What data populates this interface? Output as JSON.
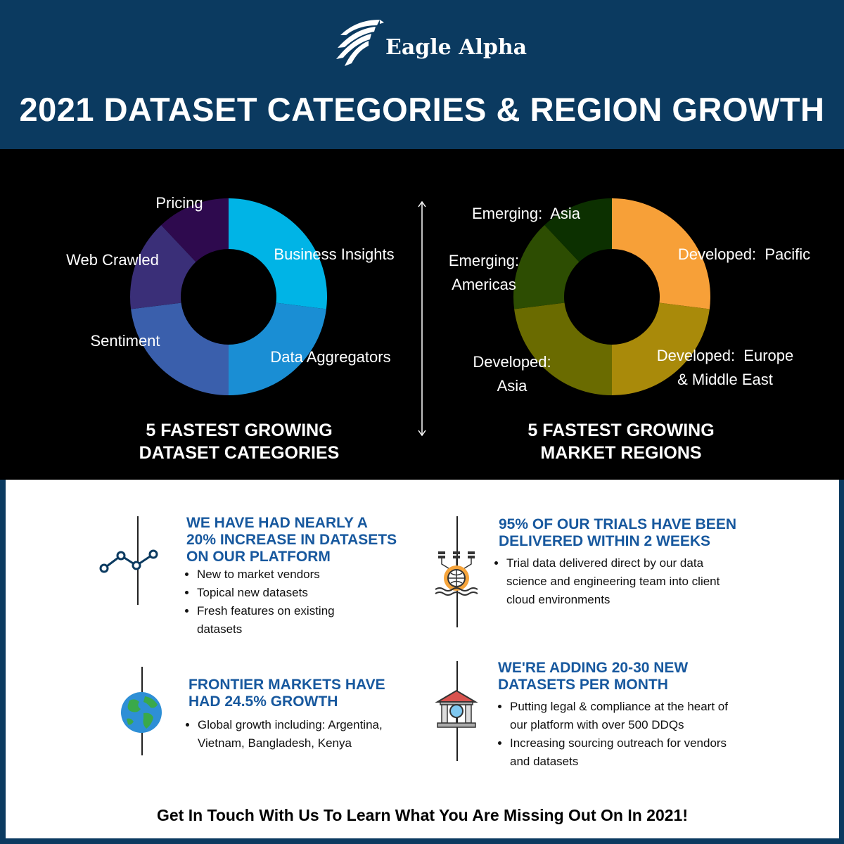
{
  "brand": {
    "name": "Eagle Alpha"
  },
  "title": "2021 DATASET CATEGORIES &  REGION GROWTH",
  "chart_data": [
    {
      "type": "pie",
      "title": "5 FASTEST GROWING DATASET CATEGORIES",
      "caption_lines": [
        "5 FASTEST GROWING",
        "DATASET CATEGORIES"
      ],
      "categories": [
        "Business Insights",
        "Data Aggregators",
        "Sentiment",
        "Web Crawled",
        "Pricing"
      ],
      "values": [
        27,
        23,
        23,
        15,
        12
      ],
      "colors": [
        "#00b4e6",
        "#1a8ed4",
        "#3a5fac",
        "#3a2f78",
        "#2e0a4e"
      ]
    },
    {
      "type": "pie",
      "title": "5 FASTEST GROWING MARKET REGIONS",
      "caption_lines": [
        "5 FASTEST GROWING",
        "MARKET REGIONS"
      ],
      "categories": [
        "Developed:  Pacific",
        "Developed:  Europe & Middle East",
        "Developed: Asia",
        "Emerging: Americas",
        "Emerging:  Asia"
      ],
      "label_lines": [
        [
          "Developed:  Pacific"
        ],
        [
          "Developed:  Europe",
          "& Middle East"
        ],
        [
          "Developed:",
          "Asia"
        ],
        [
          "Emerging:",
          "Americas"
        ],
        [
          "Emerging:  Asia"
        ]
      ],
      "values": [
        27,
        23,
        23,
        15,
        12
      ],
      "colors": [
        "#f7a038",
        "#a98a0a",
        "#6a6b00",
        "#2d4d02",
        "#0c3000"
      ]
    }
  ],
  "sections": [
    {
      "title_lines": [
        "WE HAVE HAD NEARLY A",
        "20% INCREASE IN DATASETS",
        "ON OUR PLATFORM"
      ],
      "bullets": [
        "New to market vendors",
        "Topical new datasets",
        "Fresh features on existing datasets"
      ]
    },
    {
      "title_lines": [
        "95% OF OUR TRIALS HAVE BEEN",
        "DELIVERED WITHIN 2 WEEKS"
      ],
      "bullets": [
        "Trial data delivered direct by our data science and engineering team into client cloud environments"
      ]
    },
    {
      "title_lines": [
        "FRONTIER MARKETS HAVE",
        "HAD 24.5% GROWTH"
      ],
      "bullets": [
        "Global growth including: Argentina, Vietnam, Bangladesh, Kenya"
      ]
    },
    {
      "title_lines": [
        "WE'RE ADDING 20-30 NEW",
        "DATASETS PER MONTH"
      ],
      "bullets": [
        "Putting legal & compliance at the heart of our platform with over 500 DDQs",
        "Increasing sourcing outreach for vendors and datasets"
      ]
    }
  ],
  "footer": "Get In Touch With Us To Learn What You Are Missing Out On In 2021!",
  "icons": [
    "eagle-logo-icon",
    "line-chart-icon",
    "globe-data-icon",
    "earth-globe-icon",
    "building-search-icon",
    "double-arrow-icon"
  ]
}
